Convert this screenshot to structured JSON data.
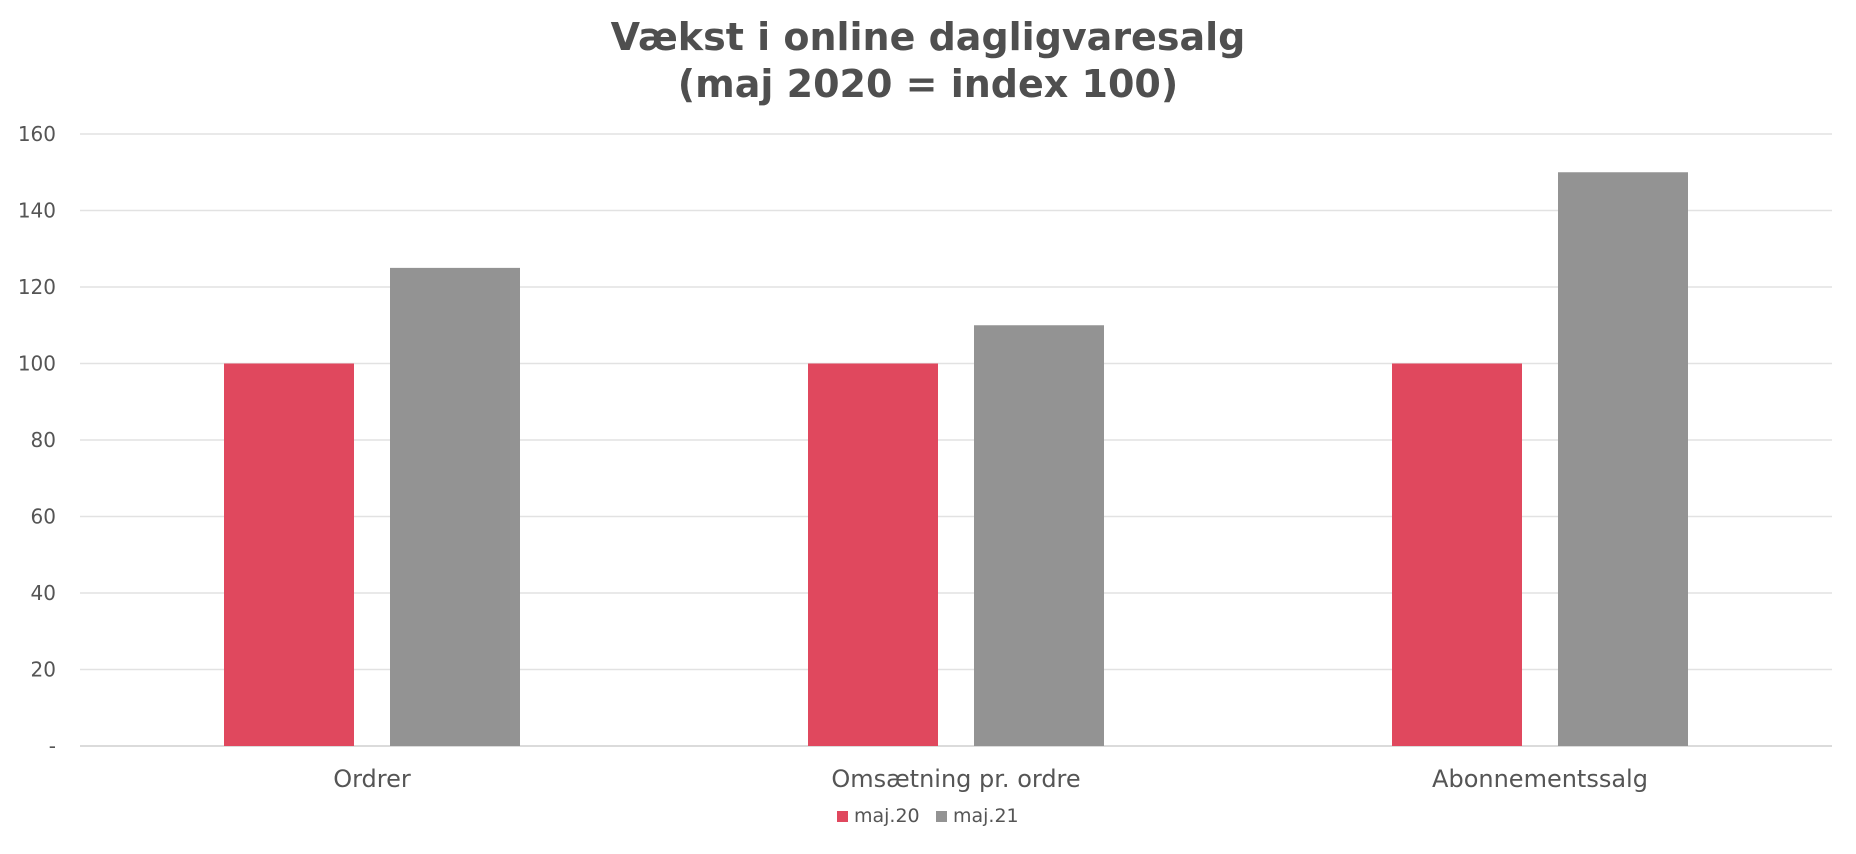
{
  "chart_data": {
    "type": "bar",
    "title": "Vækst i online dagligvaresalg",
    "subtitle": "(maj 2020 = index 100)",
    "categories": [
      "Ordrer",
      "Omsætning pr. ordre",
      "Abonnementssalg"
    ],
    "series": [
      {
        "name": "maj.20",
        "values": [
          100,
          100,
          100
        ],
        "color": "#e0485e"
      },
      {
        "name": "maj.21",
        "values": [
          125,
          110,
          150
        ],
        "color": "#939393"
      }
    ],
    "yticks": [
      "-",
      "20",
      "40",
      "60",
      "80",
      "100",
      "120",
      "140",
      "160"
    ],
    "ylim": [
      0,
      160
    ],
    "grid": true,
    "legend": "bottom-center"
  }
}
